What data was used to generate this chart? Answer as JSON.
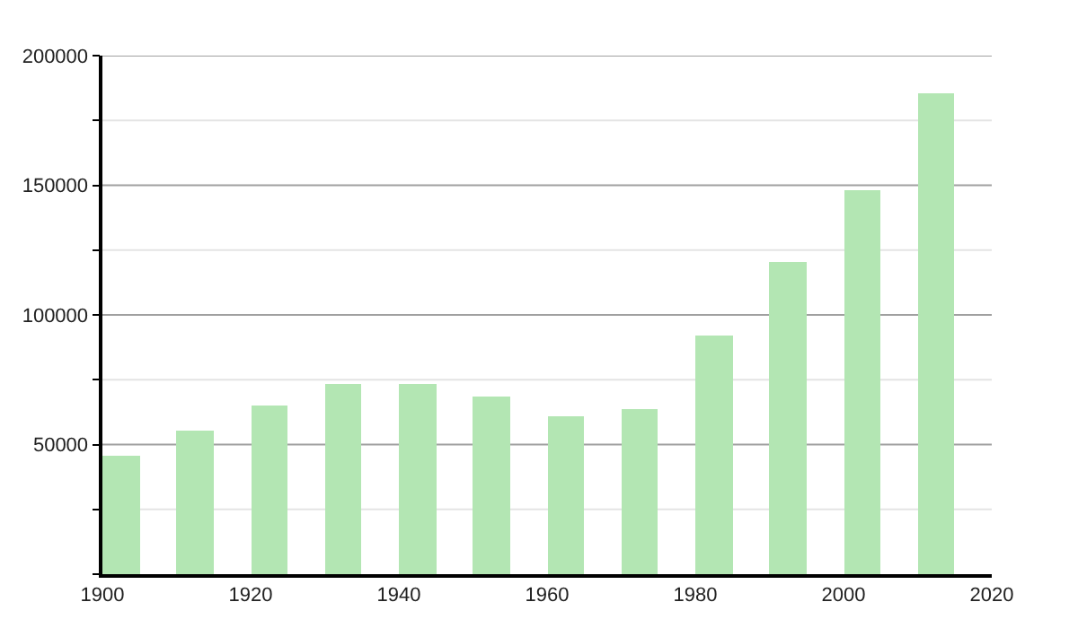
{
  "chart_data": {
    "type": "bar",
    "x": [
      1902.5,
      1912.5,
      1922.5,
      1932.5,
      1942.5,
      1952.5,
      1962.5,
      1972.5,
      1982.5,
      1992.5,
      2002.5,
      2012.5
    ],
    "values": [
      46000,
      55300,
      65000,
      73300,
      73300,
      68200,
      60800,
      63600,
      91900,
      120300,
      148400,
      185300
    ],
    "color": "#b3e6b3",
    "xlim": [
      1900,
      2020
    ],
    "xticks": [
      1900,
      1920,
      1940,
      1960,
      1980,
      2000,
      2020
    ],
    "ylim": [
      0,
      200000
    ],
    "yticks": [
      {
        "value": 0,
        "label": null
      },
      {
        "value": 25000,
        "label": null
      },
      50000,
      {
        "value": 75000,
        "label": null
      },
      100000,
      {
        "value": 125000,
        "label": null
      },
      150000,
      {
        "value": 175000,
        "label": null
      },
      200000
    ],
    "grid": "y"
  }
}
